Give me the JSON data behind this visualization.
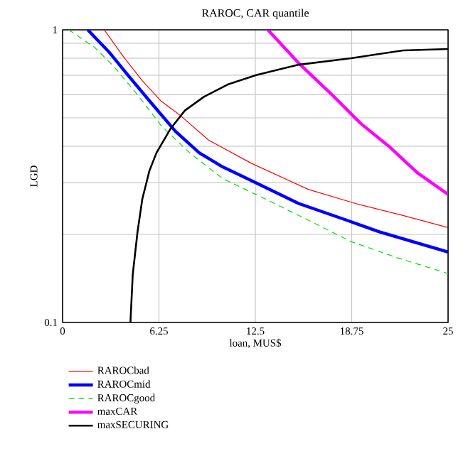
{
  "chart_data": {
    "type": "line",
    "title": "RAROC, CAR quantile",
    "xlabel": "loan, MUS$",
    "ylabel": "LGD",
    "log": "y",
    "grid": true,
    "legend": "bottom",
    "marker": "none",
    "xlim": [
      0,
      25
    ],
    "ylim": [
      0.1,
      1
    ],
    "xticks": [
      0,
      6.25,
      12.5,
      18.75,
      25
    ],
    "yticks": [
      0.1,
      1
    ],
    "series": [
      {
        "name": "RAROCbad",
        "color": "#ff0000",
        "line_style": "solid",
        "x": [
          2.7,
          3.94,
          5.17,
          6.4,
          7.63,
          9.47,
          12.24,
          15.93,
          19.0,
          22.08,
          25
        ],
        "values": [
          1,
          0.81,
          0.67,
          0.57,
          0.51,
          0.42,
          0.35,
          0.285,
          0.255,
          0.232,
          0.211
        ]
      },
      {
        "name": "RAROCmid",
        "color": "#0000ff",
        "line_style": "solid",
        "x": [
          1.63,
          3.01,
          4.24,
          5.78,
          7.32,
          8.86,
          10.39,
          12.55,
          15.31,
          18.39,
          20.54,
          25
        ],
        "values": [
          1,
          0.84,
          0.7,
          0.56,
          0.45,
          0.38,
          0.34,
          0.3,
          0.255,
          0.224,
          0.204,
          0.174
        ]
      },
      {
        "name": "RAROCgood",
        "color": "#00dd00",
        "line_style": "dashed",
        "x": [
          0.4,
          2.09,
          3.32,
          4.86,
          6.4,
          8.24,
          10.39,
          13.16,
          15.62,
          18.7,
          21.77,
          25
        ],
        "values": [
          1,
          0.87,
          0.75,
          0.6,
          0.47,
          0.38,
          0.31,
          0.264,
          0.228,
          0.189,
          0.166,
          0.147
        ]
      },
      {
        "name": "maxCAR",
        "color": "#ff00ff",
        "line_style": "solid",
        "x": [
          13.31,
          15.31,
          17.47,
          19.31,
          21.16,
          23.0,
          25
        ],
        "values": [
          1,
          0.77,
          0.6,
          0.48,
          0.4,
          0.325,
          0.274
        ]
      },
      {
        "name": "maxSECURING",
        "color": "#000000",
        "line_style": "solid",
        "x": [
          4.4,
          4.55,
          4.86,
          5.17,
          5.63,
          6.09,
          7.01,
          7.93,
          9.16,
          10.7,
          12.55,
          15.31,
          18.7,
          22.08,
          25
        ],
        "values": [
          0.1,
          0.146,
          0.204,
          0.264,
          0.33,
          0.38,
          0.46,
          0.53,
          0.59,
          0.65,
          0.7,
          0.76,
          0.8,
          0.85,
          0.86
        ]
      }
    ]
  }
}
